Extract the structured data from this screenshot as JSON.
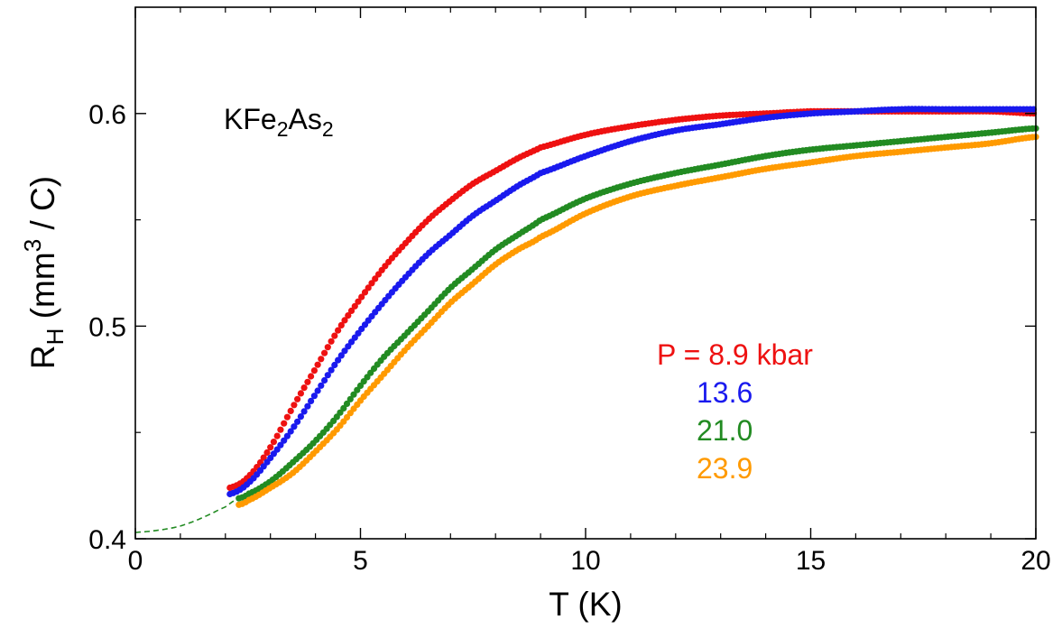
{
  "chart_data": {
    "type": "scatter",
    "compound_label": {
      "base": "KFe",
      "sub1": "2",
      "mid": "As",
      "sub2": "2"
    },
    "xlabel": "T (K)",
    "ylabel": {
      "main": "R",
      "sub": "H",
      "unit_open": " (mm",
      "sup": "3",
      "unit_close": " / C)"
    },
    "xlim": [
      0,
      20
    ],
    "ylim": [
      0.4,
      0.65
    ],
    "x_ticks": [
      0,
      5,
      10,
      15,
      20
    ],
    "x_tick_labels": [
      "0",
      "5",
      "10",
      "15",
      "20"
    ],
    "y_ticks": [
      0.4,
      0.5,
      0.6
    ],
    "y_tick_labels": [
      "0.4",
      "0.5",
      "0.6"
    ],
    "legend": {
      "placement": "lower-right",
      "entries": [
        "P = 8.9 kbar",
        "13.6",
        "21.0",
        "23.9"
      ]
    },
    "series": [
      {
        "name": "P = 8.9 kbar",
        "color": "#ee1111",
        "x": [
          2.1,
          2.5,
          3,
          3.5,
          4,
          4.5,
          5,
          5.5,
          6,
          6.5,
          7,
          7.5,
          8,
          8.5,
          9,
          10,
          11,
          12,
          13,
          14,
          15,
          16,
          17,
          18,
          19,
          20
        ],
        "y": [
          0.424,
          0.429,
          0.443,
          0.462,
          0.48,
          0.498,
          0.513,
          0.527,
          0.539,
          0.55,
          0.559,
          0.567,
          0.573,
          0.579,
          0.584,
          0.59,
          0.594,
          0.597,
          0.599,
          0.6,
          0.601,
          0.601,
          0.601,
          0.601,
          0.601,
          0.6
        ]
      },
      {
        "name": "13.6",
        "color": "#1a1aee",
        "x": [
          2.1,
          2.5,
          3,
          3.5,
          4,
          4.5,
          5,
          5.5,
          6,
          6.5,
          7,
          7.5,
          8,
          8.5,
          9,
          10,
          11,
          12,
          13,
          14,
          15,
          16,
          17,
          18,
          19,
          20
        ],
        "y": [
          0.421,
          0.426,
          0.438,
          0.452,
          0.468,
          0.484,
          0.498,
          0.511,
          0.523,
          0.534,
          0.543,
          0.552,
          0.559,
          0.566,
          0.572,
          0.58,
          0.587,
          0.592,
          0.595,
          0.598,
          0.6,
          0.601,
          0.602,
          0.602,
          0.602,
          0.602
        ]
      },
      {
        "name": "21.0",
        "color": "#228b22",
        "x": [
          2.3,
          2.5,
          3,
          3.5,
          4,
          4.5,
          5,
          5.5,
          6,
          6.5,
          7,
          7.5,
          8,
          8.5,
          9,
          10,
          11,
          12,
          13,
          14,
          15,
          16,
          17,
          18,
          19,
          20
        ],
        "y": [
          0.419,
          0.421,
          0.427,
          0.436,
          0.446,
          0.458,
          0.472,
          0.485,
          0.496,
          0.507,
          0.518,
          0.527,
          0.536,
          0.543,
          0.55,
          0.56,
          0.567,
          0.572,
          0.576,
          0.58,
          0.583,
          0.585,
          0.587,
          0.589,
          0.591,
          0.593
        ]
      },
      {
        "name": "23.9",
        "color": "#ff9a00",
        "x": [
          2.3,
          2.5,
          3,
          3.5,
          4,
          4.5,
          5,
          5.5,
          6,
          6.5,
          7,
          7.5,
          8,
          8.5,
          9,
          10,
          11,
          12,
          13,
          14,
          15,
          16,
          17,
          18,
          19,
          20
        ],
        "y": [
          0.416,
          0.418,
          0.424,
          0.431,
          0.441,
          0.452,
          0.465,
          0.477,
          0.489,
          0.5,
          0.511,
          0.52,
          0.529,
          0.536,
          0.542,
          0.553,
          0.561,
          0.566,
          0.57,
          0.574,
          0.577,
          0.58,
          0.582,
          0.584,
          0.586,
          0.589
        ]
      }
    ],
    "fit_line": {
      "style": "dashed",
      "color": "#228b22",
      "x": [
        0,
        0.5,
        1,
        1.5,
        2,
        2.3
      ],
      "y": [
        0.403,
        0.404,
        0.406,
        0.41,
        0.415,
        0.419
      ]
    }
  }
}
